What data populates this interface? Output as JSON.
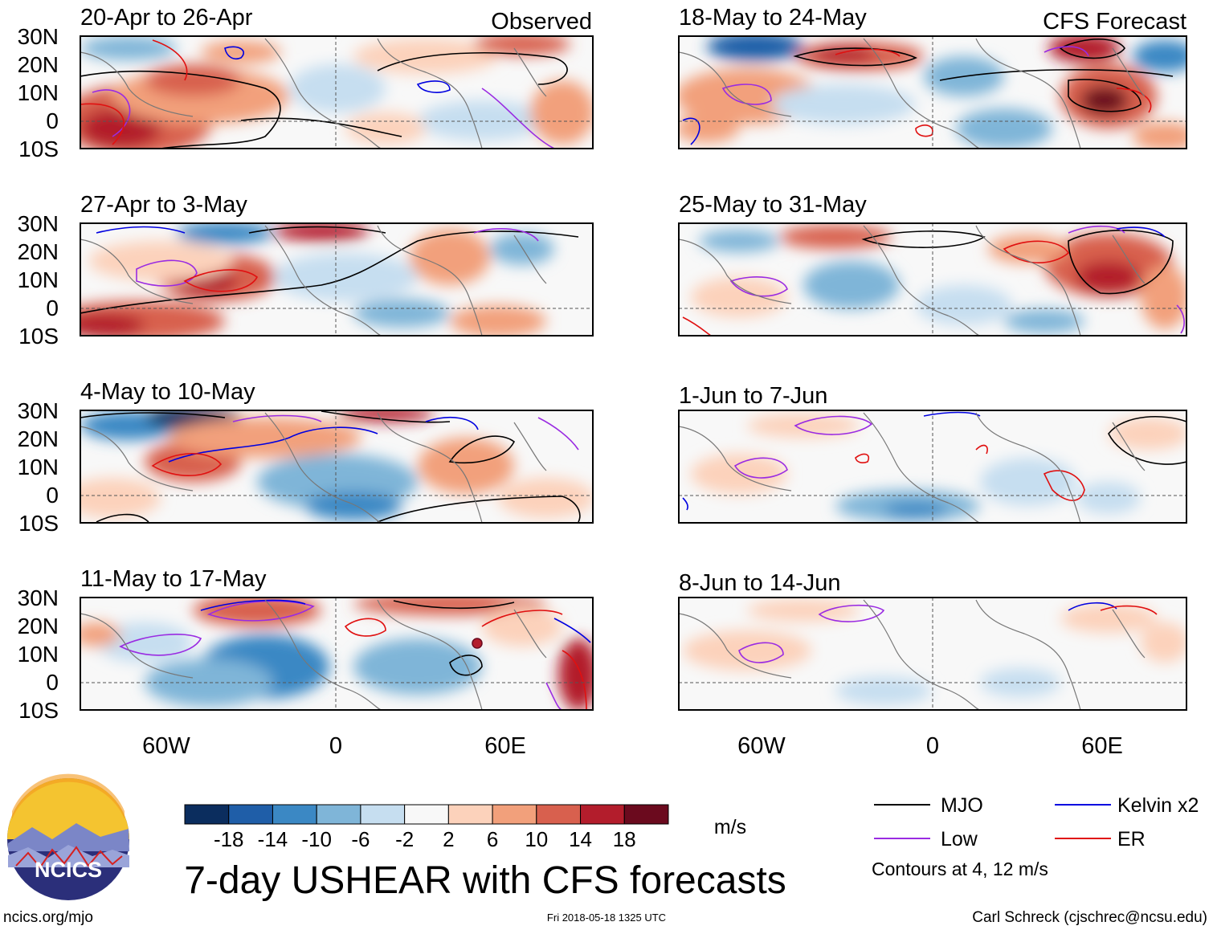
{
  "figure": {
    "title": "7-day USHEAR with CFS forecasts",
    "website": "ncics.org/mjo",
    "timestamp": "Fri 2018-05-18 1325 UTC",
    "author": "Carl Schreck (cjschrec@ncsu.edu)",
    "logo_text": "NCICS"
  },
  "columns": {
    "left_header": "Observed",
    "right_header": "CFS Forecast"
  },
  "axes": {
    "lat_labels": [
      "30N",
      "20N",
      "10N",
      "0",
      "10S"
    ],
    "lon_labels": [
      "60W",
      "0",
      "60E"
    ]
  },
  "panels_left": [
    {
      "period": "20-Apr to 26-Apr"
    },
    {
      "period": "27-Apr to 3-May"
    },
    {
      "period": "4-May to 10-May"
    },
    {
      "period": "11-May to 17-May"
    }
  ],
  "panels_right": [
    {
      "period": "18-May to 24-May"
    },
    {
      "period": "25-May to 31-May"
    },
    {
      "period": "1-Jun to 7-Jun"
    },
    {
      "period": "8-Jun to 14-Jun"
    }
  ],
  "colorbar": {
    "unit": "m/s",
    "tick_labels": [
      "-18",
      "-14",
      "-10",
      "-6",
      "-2",
      "2",
      "6",
      "10",
      "14",
      "18"
    ],
    "colors": [
      "#0b2d5e",
      "#1f5ea8",
      "#3b88c4",
      "#7fb5d8",
      "#c6def0",
      "#f8f8f8",
      "#fcd2bb",
      "#f2a07b",
      "#d8604e",
      "#b31d2c",
      "#6b0a1e"
    ]
  },
  "legend": {
    "items": [
      {
        "label": "MJO",
        "color": "#000000"
      },
      {
        "label": "Kelvin x2",
        "color": "#0000e0"
      },
      {
        "label": "Low",
        "color": "#9a2be2"
      },
      {
        "label": "ER",
        "color": "#e01010"
      }
    ],
    "note": "Contours at 4, 12 m/s"
  }
}
